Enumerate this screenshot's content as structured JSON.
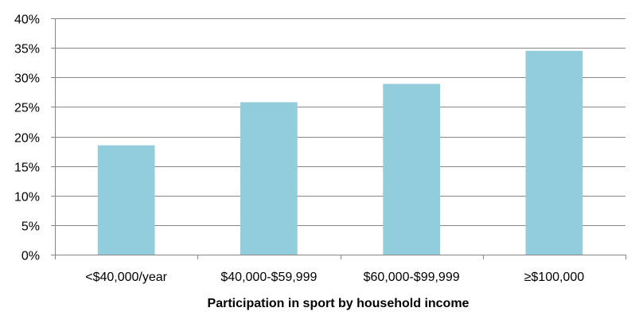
{
  "chart_data": {
    "type": "bar",
    "title": "",
    "xlabel": "Participation in sport by household income",
    "ylabel": "",
    "categories": [
      "<$40,000/year",
      "$40,000-$59,999",
      "$60,000-$99,999",
      "≥$100,000"
    ],
    "values": [
      18.5,
      25.8,
      28.9,
      34.5
    ],
    "unit": "%",
    "ylim": [
      0,
      40
    ],
    "yticks": [
      "0%",
      "5%",
      "10%",
      "15%",
      "20%",
      "25%",
      "30%",
      "35%",
      "40%"
    ],
    "grid": true,
    "legend": "none",
    "bar_color": "#92cddc",
    "gridline_color": "#878787"
  }
}
